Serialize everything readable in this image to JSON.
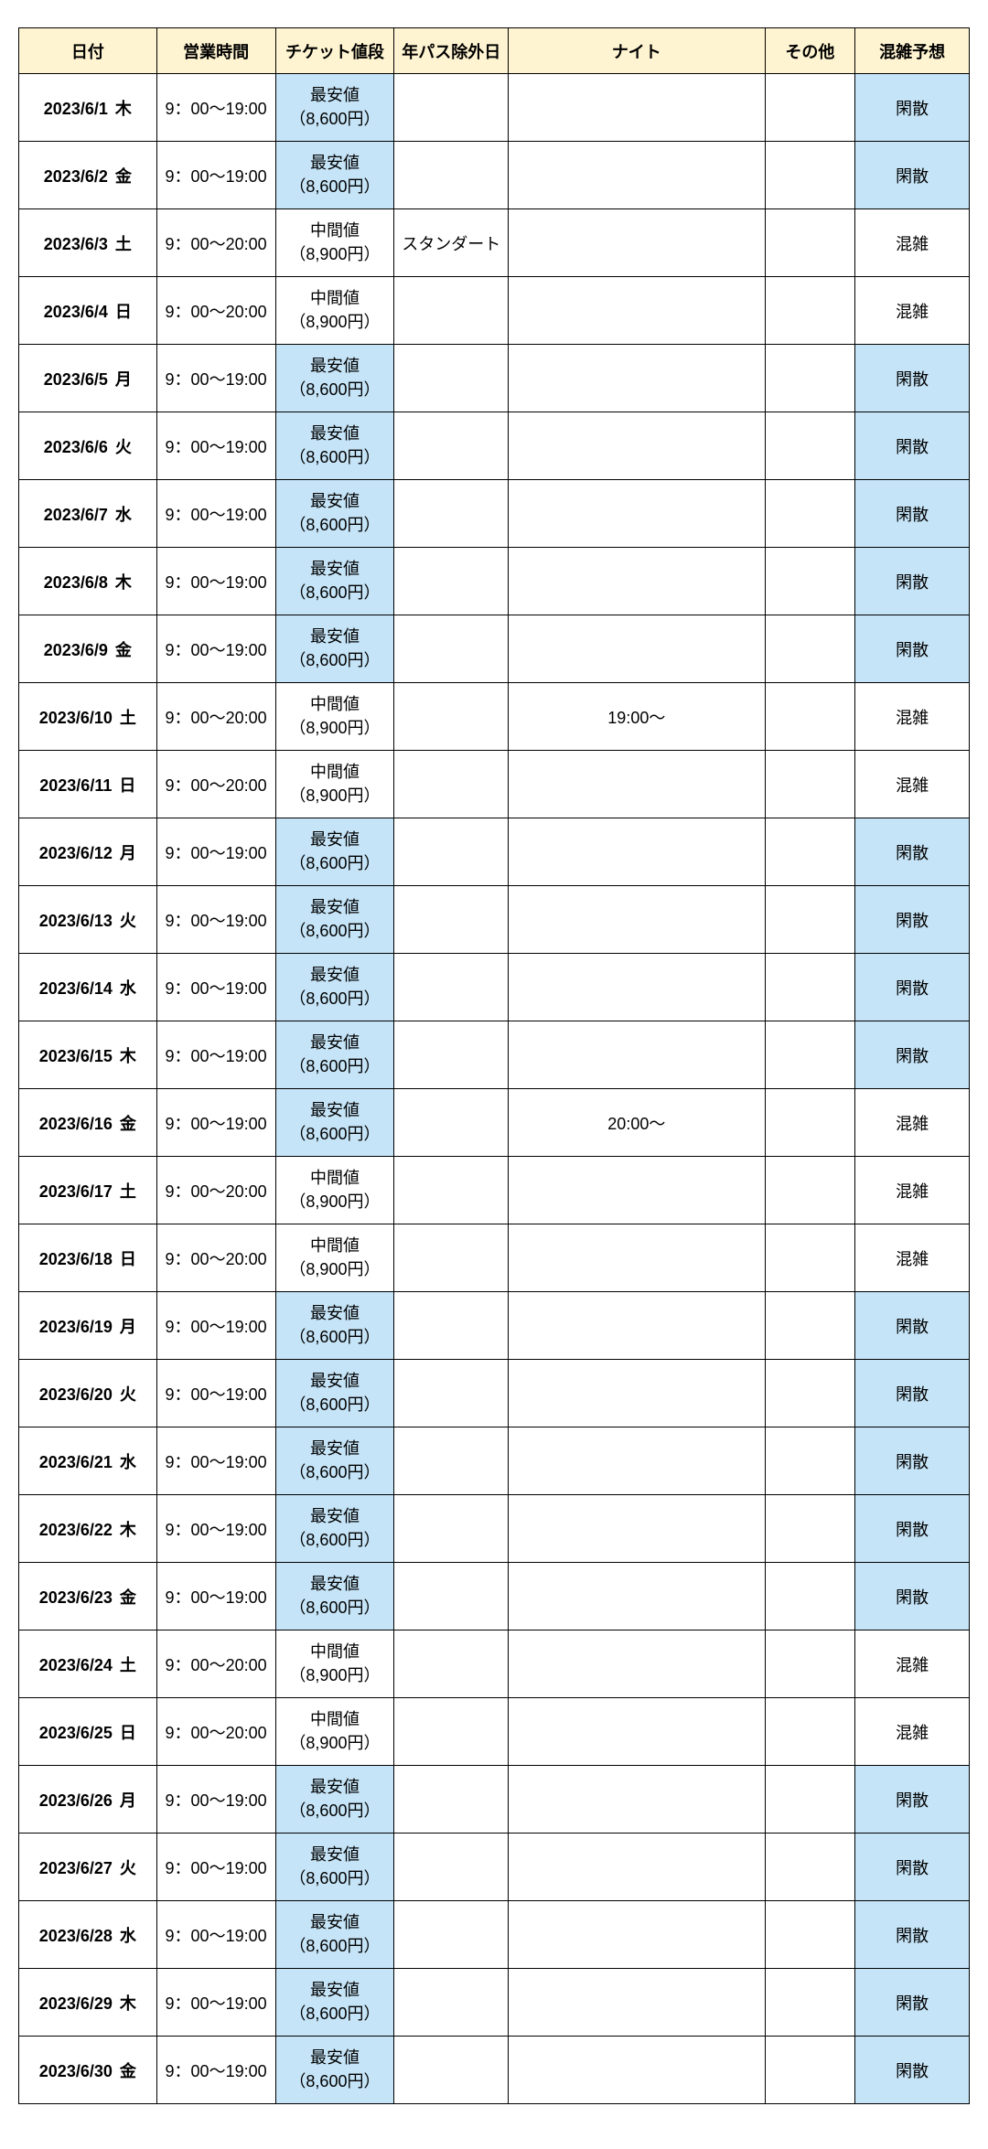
{
  "columns": {
    "date": "日付",
    "hours": "営業時間",
    "ticket": "チケット値段",
    "exclude": "年パス除外日",
    "night": "ナイト",
    "other": "その他",
    "crowd": "混雑予想"
  },
  "ticketLabels": {
    "lowest": "最安値",
    "lowestPrice": "（8,600円）",
    "mid": "中間値",
    "midPrice": "（8,900円）"
  },
  "crowdLabels": {
    "quiet": "閑散",
    "crowded": "混雑"
  },
  "excludeLabels": {
    "standard": "スタンダート"
  },
  "colors": {
    "headerBg": "#fff4d1",
    "highlightBg": "#c5e4f7",
    "border": "#000000"
  },
  "rows": [
    {
      "date": "2023/6/1",
      "dow": "木",
      "hours": "9：00～19:00",
      "ticket": "lowest",
      "exclude": "",
      "night": "",
      "other": "",
      "crowd": "quiet"
    },
    {
      "date": "2023/6/2",
      "dow": "金",
      "hours": "9：00～19:00",
      "ticket": "lowest",
      "exclude": "",
      "night": "",
      "other": "",
      "crowd": "quiet"
    },
    {
      "date": "2023/6/3",
      "dow": "土",
      "hours": "9：00～20:00",
      "ticket": "mid",
      "exclude": "standard",
      "night": "",
      "other": "",
      "crowd": "crowded"
    },
    {
      "date": "2023/6/4",
      "dow": "日",
      "hours": "9：00～20:00",
      "ticket": "mid",
      "exclude": "",
      "night": "",
      "other": "",
      "crowd": "crowded"
    },
    {
      "date": "2023/6/5",
      "dow": "月",
      "hours": "9：00～19:00",
      "ticket": "lowest",
      "exclude": "",
      "night": "",
      "other": "",
      "crowd": "quiet"
    },
    {
      "date": "2023/6/6",
      "dow": "火",
      "hours": "9：00～19:00",
      "ticket": "lowest",
      "exclude": "",
      "night": "",
      "other": "",
      "crowd": "quiet"
    },
    {
      "date": "2023/6/7",
      "dow": "水",
      "hours": "9：00～19:00",
      "ticket": "lowest",
      "exclude": "",
      "night": "",
      "other": "",
      "crowd": "quiet"
    },
    {
      "date": "2023/6/8",
      "dow": "木",
      "hours": "9：00～19:00",
      "ticket": "lowest",
      "exclude": "",
      "night": "",
      "other": "",
      "crowd": "quiet"
    },
    {
      "date": "2023/6/9",
      "dow": "金",
      "hours": "9：00～19:00",
      "ticket": "lowest",
      "exclude": "",
      "night": "",
      "other": "",
      "crowd": "quiet"
    },
    {
      "date": "2023/6/10",
      "dow": "土",
      "hours": "9：00～20:00",
      "ticket": "mid",
      "exclude": "",
      "night": "19:00～",
      "other": "",
      "crowd": "crowded"
    },
    {
      "date": "2023/6/11",
      "dow": "日",
      "hours": "9：00～20:00",
      "ticket": "mid",
      "exclude": "",
      "night": "",
      "other": "",
      "crowd": "crowded"
    },
    {
      "date": "2023/6/12",
      "dow": "月",
      "hours": "9：00～19:00",
      "ticket": "lowest",
      "exclude": "",
      "night": "",
      "other": "",
      "crowd": "quiet"
    },
    {
      "date": "2023/6/13",
      "dow": "火",
      "hours": "9：00～19:00",
      "ticket": "lowest",
      "exclude": "",
      "night": "",
      "other": "",
      "crowd": "quiet"
    },
    {
      "date": "2023/6/14",
      "dow": "水",
      "hours": "9：00～19:00",
      "ticket": "lowest",
      "exclude": "",
      "night": "",
      "other": "",
      "crowd": "quiet"
    },
    {
      "date": "2023/6/15",
      "dow": "木",
      "hours": "9：00～19:00",
      "ticket": "lowest",
      "exclude": "",
      "night": "",
      "other": "",
      "crowd": "quiet"
    },
    {
      "date": "2023/6/16",
      "dow": "金",
      "hours": "9：00～19:00",
      "ticket": "lowest",
      "exclude": "",
      "night": "20:00～",
      "other": "",
      "crowd": "crowded"
    },
    {
      "date": "2023/6/17",
      "dow": "土",
      "hours": "9：00～20:00",
      "ticket": "mid",
      "exclude": "",
      "night": "",
      "other": "",
      "crowd": "crowded"
    },
    {
      "date": "2023/6/18",
      "dow": "日",
      "hours": "9：00～20:00",
      "ticket": "mid",
      "exclude": "",
      "night": "",
      "other": "",
      "crowd": "crowded"
    },
    {
      "date": "2023/6/19",
      "dow": "月",
      "hours": "9：00～19:00",
      "ticket": "lowest",
      "exclude": "",
      "night": "",
      "other": "",
      "crowd": "quiet"
    },
    {
      "date": "2023/6/20",
      "dow": "火",
      "hours": "9：00～19:00",
      "ticket": "lowest",
      "exclude": "",
      "night": "",
      "other": "",
      "crowd": "quiet"
    },
    {
      "date": "2023/6/21",
      "dow": "水",
      "hours": "9：00～19:00",
      "ticket": "lowest",
      "exclude": "",
      "night": "",
      "other": "",
      "crowd": "quiet"
    },
    {
      "date": "2023/6/22",
      "dow": "木",
      "hours": "9：00～19:00",
      "ticket": "lowest",
      "exclude": "",
      "night": "",
      "other": "",
      "crowd": "quiet"
    },
    {
      "date": "2023/6/23",
      "dow": "金",
      "hours": "9：00～19:00",
      "ticket": "lowest",
      "exclude": "",
      "night": "",
      "other": "",
      "crowd": "quiet"
    },
    {
      "date": "2023/6/24",
      "dow": "土",
      "hours": "9：00～20:00",
      "ticket": "mid",
      "exclude": "",
      "night": "",
      "other": "",
      "crowd": "crowded"
    },
    {
      "date": "2023/6/25",
      "dow": "日",
      "hours": "9：00～20:00",
      "ticket": "mid",
      "exclude": "",
      "night": "",
      "other": "",
      "crowd": "crowded"
    },
    {
      "date": "2023/6/26",
      "dow": "月",
      "hours": "9：00～19:00",
      "ticket": "lowest",
      "exclude": "",
      "night": "",
      "other": "",
      "crowd": "quiet"
    },
    {
      "date": "2023/6/27",
      "dow": "火",
      "hours": "9：00～19:00",
      "ticket": "lowest",
      "exclude": "",
      "night": "",
      "other": "",
      "crowd": "quiet"
    },
    {
      "date": "2023/6/28",
      "dow": "水",
      "hours": "9：00～19:00",
      "ticket": "lowest",
      "exclude": "",
      "night": "",
      "other": "",
      "crowd": "quiet"
    },
    {
      "date": "2023/6/29",
      "dow": "木",
      "hours": "9：00～19:00",
      "ticket": "lowest",
      "exclude": "",
      "night": "",
      "other": "",
      "crowd": "quiet"
    },
    {
      "date": "2023/6/30",
      "dow": "金",
      "hours": "9：00～19:00",
      "ticket": "lowest",
      "exclude": "",
      "night": "",
      "other": "",
      "crowd": "quiet"
    }
  ]
}
